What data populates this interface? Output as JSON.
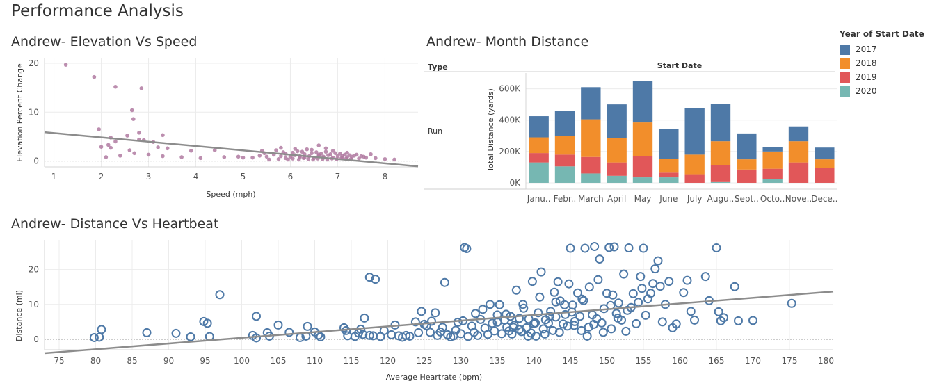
{
  "dashboard": {
    "title": "Performance Analysis"
  },
  "elevation_title": "Andrew- Elevation Vs Speed",
  "month_title": "Andrew- Month Distance",
  "heartbeat_title": "Andrew- Distance Vs Heartbeat",
  "legend": {
    "title": "Year of Start Date",
    "items": [
      {
        "label": "2017",
        "color": "#4e79a7"
      },
      {
        "label": "2018",
        "color": "#f28e2b"
      },
      {
        "label": "2019",
        "color": "#e15759"
      },
      {
        "label": "2020",
        "color": "#76b7b2"
      }
    ]
  },
  "month_headers": {
    "type_label": "Type",
    "date_label": "Start Date",
    "row_label": "Run"
  },
  "chart_data": [
    {
      "type": "scatter",
      "title": "Andrew- Elevation Vs Speed",
      "xlabel": "Speed (mph)",
      "ylabel": "Elevation Percent Change",
      "xlim": [
        0.8,
        8.7
      ],
      "ylim": [
        -1.2,
        21
      ],
      "xticks": [
        1,
        2,
        3,
        4,
        5,
        6,
        7,
        8
      ],
      "yticks": [
        0,
        10,
        20
      ],
      "point_color": "#b07aa1",
      "trend": {
        "x": [
          0.8,
          8.7
        ],
        "y": [
          5.9,
          -1.1
        ]
      },
      "points": [
        [
          1.25,
          19.7
        ],
        [
          1.85,
          17.2
        ],
        [
          2.3,
          15.2
        ],
        [
          2.85,
          14.9
        ],
        [
          2.65,
          10.4
        ],
        [
          2.68,
          8.6
        ],
        [
          1.95,
          6.5
        ],
        [
          2.8,
          5.8
        ],
        [
          2.55,
          5.2
        ],
        [
          3.3,
          5.3
        ],
        [
          2.2,
          4.8
        ],
        [
          2.15,
          3.3
        ],
        [
          2.3,
          4.0
        ],
        [
          2.8,
          4.4
        ],
        [
          2.9,
          4.3
        ],
        [
          3.1,
          3.9
        ],
        [
          2.0,
          2.9
        ],
        [
          2.2,
          2.7
        ],
        [
          2.6,
          2.2
        ],
        [
          3.2,
          2.8
        ],
        [
          3.4,
          2.6
        ],
        [
          3.9,
          2.1
        ],
        [
          4.4,
          2.2
        ],
        [
          5.4,
          2.1
        ],
        [
          6.6,
          3.2
        ],
        [
          2.1,
          0.8
        ],
        [
          2.4,
          1.1
        ],
        [
          2.7,
          1.6
        ],
        [
          3.0,
          1.3
        ],
        [
          3.3,
          1.0
        ],
        [
          3.7,
          0.8
        ],
        [
          4.1,
          0.6
        ],
        [
          4.6,
          0.8
        ],
        [
          4.9,
          0.9
        ],
        [
          5.0,
          0.7
        ],
        [
          5.2,
          0.7
        ],
        [
          5.35,
          1.1
        ],
        [
          5.5,
          0.9
        ],
        [
          5.65,
          1.3
        ],
        [
          5.8,
          1.0
        ],
        [
          5.9,
          1.5
        ],
        [
          6.0,
          0.9
        ],
        [
          6.1,
          1.2
        ],
        [
          6.2,
          0.8
        ],
        [
          6.3,
          1.4
        ],
        [
          6.4,
          1.0
        ],
        [
          6.5,
          0.6
        ],
        [
          6.6,
          1.1
        ],
        [
          6.7,
          0.9
        ],
        [
          6.8,
          1.2
        ],
        [
          6.9,
          0.7
        ],
        [
          7.0,
          1.0
        ],
        [
          7.1,
          1.1
        ],
        [
          7.2,
          0.8
        ],
        [
          7.3,
          0.9
        ],
        [
          7.4,
          1.3
        ],
        [
          7.6,
          0.7
        ],
        [
          7.8,
          0.6
        ],
        [
          8.0,
          0.4
        ],
        [
          8.2,
          0.3
        ],
        [
          5.45,
          1.6
        ],
        [
          5.7,
          2.2
        ],
        [
          5.85,
          1.8
        ],
        [
          6.05,
          1.7
        ],
        [
          6.15,
          2.0
        ],
        [
          6.25,
          1.9
        ],
        [
          6.35,
          2.4
        ],
        [
          6.45,
          1.6
        ],
        [
          6.55,
          1.8
        ],
        [
          6.65,
          1.5
        ],
        [
          6.75,
          1.9
        ],
        [
          6.85,
          1.4
        ],
        [
          6.95,
          1.6
        ],
        [
          7.05,
          1.5
        ],
        [
          7.15,
          1.3
        ],
        [
          7.25,
          1.2
        ],
        [
          7.35,
          1.1
        ],
        [
          7.5,
          1.0
        ],
        [
          7.7,
          1.4
        ],
        [
          5.55,
          0.3
        ],
        [
          5.75,
          0.4
        ],
        [
          5.95,
          0.3
        ],
        [
          6.05,
          0.5
        ],
        [
          6.18,
          0.3
        ],
        [
          6.28,
          0.6
        ],
        [
          6.38,
          0.4
        ],
        [
          6.48,
          0.3
        ],
        [
          6.58,
          0.5
        ],
        [
          6.68,
          0.4
        ],
        [
          6.78,
          0.3
        ],
        [
          6.88,
          0.5
        ],
        [
          6.98,
          0.4
        ],
        [
          7.08,
          0.6
        ],
        [
          7.18,
          0.5
        ],
        [
          7.28,
          0.4
        ],
        [
          7.45,
          0.5
        ],
        [
          5.9,
          0.6
        ],
        [
          6.3,
          0.7
        ],
        [
          6.7,
          0.7
        ],
        [
          7.1,
          0.7
        ],
        [
          7.55,
          0.9
        ],
        [
          6.2,
          1.0
        ],
        [
          6.6,
          1.3
        ],
        [
          6.45,
          2.3
        ],
        [
          6.75,
          2.6
        ],
        [
          6.1,
          2.5
        ],
        [
          5.8,
          2.7
        ],
        [
          6.9,
          2.1
        ],
        [
          7.2,
          1.7
        ]
      ]
    },
    {
      "type": "bar",
      "stacked": true,
      "title": "Andrew- Month Distance",
      "ylabel": "Total Distance (yards)",
      "ylim": [
        -40000,
        700000
      ],
      "yticks": [
        0,
        200000,
        400000,
        600000
      ],
      "ytick_labels": [
        "0K",
        "200K",
        "400K",
        "600K"
      ],
      "categories": [
        "Janu..",
        "Febr..",
        "March",
        "April",
        "May",
        "June",
        "July",
        "Augu..",
        "Sept..",
        "Octo..",
        "Nove..",
        "Dece.."
      ],
      "series": [
        {
          "name": "2020",
          "color": "#76b7b2",
          "values": [
            130000,
            105000,
            60000,
            45000,
            35000,
            35000,
            0,
            5000,
            0,
            25000,
            0,
            0
          ]
        },
        {
          "name": "2019",
          "color": "#e15759",
          "values": [
            60000,
            75000,
            105000,
            85000,
            135000,
            30000,
            55000,
            110000,
            85000,
            65000,
            130000,
            95000
          ]
        },
        {
          "name": "2018",
          "color": "#f28e2b",
          "values": [
            100000,
            120000,
            240000,
            155000,
            215000,
            90000,
            125000,
            150000,
            65000,
            110000,
            135000,
            55000
          ]
        },
        {
          "name": "2017",
          "color": "#4e79a7",
          "values": [
            135000,
            160000,
            205000,
            215000,
            265000,
            190000,
            295000,
            240000,
            165000,
            30000,
            95000,
            75000
          ]
        }
      ]
    },
    {
      "type": "scatter",
      "title": "Andrew- Distance Vs Heartbeat",
      "xlabel": "Average Heartrate (bpm)",
      "ylabel": "Distance (mi)",
      "xlim": [
        73,
        181
      ],
      "ylim": [
        -3,
        28.5
      ],
      "xticks": [
        75,
        80,
        85,
        90,
        95,
        100,
        105,
        110,
        115,
        120,
        125,
        130,
        135,
        140,
        145,
        150,
        155,
        160,
        165,
        170,
        175,
        180
      ],
      "yticks": [
        0,
        10,
        20
      ],
      "point_color": "#4e79a7",
      "trend": {
        "x": [
          73,
          181
        ],
        "y": [
          -4,
          13.7
        ]
      },
      "points": [
        [
          79.8,
          0.5
        ],
        [
          80.5,
          0.6
        ],
        [
          80.8,
          2.8
        ],
        [
          87.0,
          1.9
        ],
        [
          91.0,
          1.7
        ],
        [
          93.0,
          0.7
        ],
        [
          94.8,
          5.1
        ],
        [
          95.3,
          4.6
        ],
        [
          95.6,
          0.8
        ],
        [
          97.0,
          12.8
        ],
        [
          101.5,
          1.1
        ],
        [
          102.0,
          6.6
        ],
        [
          102.0,
          0.4
        ],
        [
          103.5,
          1.9
        ],
        [
          103.8,
          0.9
        ],
        [
          105.0,
          4.1
        ],
        [
          106.5,
          2.0
        ],
        [
          108.0,
          0.5
        ],
        [
          108.8,
          0.9
        ],
        [
          109.0,
          3.7
        ],
        [
          110.0,
          2.1
        ],
        [
          110.5,
          1.2
        ],
        [
          110.8,
          0.7
        ],
        [
          114.0,
          3.3
        ],
        [
          114.3,
          2.5
        ],
        [
          114.5,
          1.0
        ],
        [
          115.5,
          0.8
        ],
        [
          116.0,
          1.8
        ],
        [
          116.3,
          2.9
        ],
        [
          116.6,
          1.4
        ],
        [
          116.8,
          6.1
        ],
        [
          117.5,
          1.1
        ],
        [
          118.0,
          1.0
        ],
        [
          117.5,
          17.8
        ],
        [
          118.3,
          17.2
        ],
        [
          119.0,
          0.8
        ],
        [
          119.5,
          2.5
        ],
        [
          120.5,
          1.3
        ],
        [
          121.0,
          4.1
        ],
        [
          121.5,
          1.0
        ],
        [
          122.0,
          0.6
        ],
        [
          122.5,
          1.1
        ],
        [
          123.0,
          0.9
        ],
        [
          123.8,
          5.0
        ],
        [
          124.2,
          1.9
        ],
        [
          124.6,
          8.0
        ],
        [
          125.0,
          4.3
        ],
        [
          125.3,
          3.9
        ],
        [
          125.8,
          2.0
        ],
        [
          126.0,
          5.2
        ],
        [
          126.5,
          7.6
        ],
        [
          126.8,
          1.1
        ],
        [
          127.2,
          2.1
        ],
        [
          127.5,
          3.4
        ],
        [
          127.8,
          16.3
        ],
        [
          128.2,
          1.3
        ],
        [
          128.6,
          0.7
        ],
        [
          129.0,
          1.0
        ],
        [
          129.3,
          2.6
        ],
        [
          129.6,
          4.9
        ],
        [
          130.0,
          1.6
        ],
        [
          130.3,
          5.3
        ],
        [
          130.5,
          26.3
        ],
        [
          130.8,
          26.0
        ],
        [
          131.0,
          0.8
        ],
        [
          131.5,
          3.8
        ],
        [
          131.8,
          2.0
        ],
        [
          132.0,
          7.4
        ],
        [
          132.3,
          1.1
        ],
        [
          132.7,
          5.7
        ],
        [
          133.0,
          8.6
        ],
        [
          133.3,
          3.2
        ],
        [
          133.7,
          1.4
        ],
        [
          134.0,
          10.0
        ],
        [
          134.3,
          4.6
        ],
        [
          134.6,
          2.4
        ],
        [
          135.0,
          7.0
        ],
        [
          135.3,
          9.9
        ],
        [
          135.6,
          1.6
        ],
        [
          136.0,
          5.5
        ],
        [
          136.3,
          3.5
        ],
        [
          136.6,
          2.4
        ],
        [
          137.0,
          1.5
        ],
        [
          137.3,
          4.0
        ],
        [
          137.6,
          14.1
        ],
        [
          138.0,
          6.0
        ],
        [
          138.3,
          2.2
        ],
        [
          138.6,
          8.9
        ],
        [
          139.0,
          3.3
        ],
        [
          139.3,
          5.8
        ],
        [
          139.6,
          1.8
        ],
        [
          140.0,
          4.5
        ],
        [
          140.3,
          0.9
        ],
        [
          140.6,
          7.6
        ],
        [
          141.0,
          19.3
        ],
        [
          141.3,
          3.0
        ],
        [
          141.6,
          5.6
        ],
        [
          142.0,
          4.6
        ],
        [
          142.3,
          8.0
        ],
        [
          142.6,
          2.5
        ],
        [
          143.0,
          6.4
        ],
        [
          143.3,
          16.5
        ],
        [
          143.6,
          11.0
        ],
        [
          144.0,
          4.4
        ],
        [
          144.3,
          7.1
        ],
        [
          144.6,
          3.8
        ],
        [
          145.0,
          26.1
        ],
        [
          145.3,
          9.8
        ],
        [
          145.6,
          5.1
        ],
        [
          146.0,
          13.3
        ],
        [
          146.3,
          6.6
        ],
        [
          146.6,
          11.5
        ],
        [
          147.0,
          26.1
        ],
        [
          147.3,
          0.9
        ],
        [
          147.6,
          15.0
        ],
        [
          148.0,
          7.0
        ],
        [
          148.3,
          26.6
        ],
        [
          148.6,
          5.9
        ],
        [
          149.0,
          23.0
        ],
        [
          149.3,
          4.7
        ],
        [
          149.6,
          8.8
        ],
        [
          150.0,
          13.2
        ],
        [
          150.3,
          26.3
        ],
        [
          150.6,
          3.0
        ],
        [
          151.0,
          26.5
        ],
        [
          151.3,
          7.4
        ],
        [
          151.6,
          10.4
        ],
        [
          152.0,
          5.5
        ],
        [
          152.3,
          18.7
        ],
        [
          152.6,
          2.3
        ],
        [
          153.0,
          26.2
        ],
        [
          153.3,
          9.1
        ],
        [
          153.6,
          13.1
        ],
        [
          154.0,
          4.5
        ],
        [
          154.3,
          10.6
        ],
        [
          154.6,
          18.0
        ],
        [
          155.0,
          26.1
        ],
        [
          155.3,
          6.9
        ],
        [
          155.6,
          11.6
        ],
        [
          156.0,
          13.2
        ],
        [
          156.3,
          16.0
        ],
        [
          156.6,
          20.2
        ],
        [
          157.0,
          22.5
        ],
        [
          157.3,
          15.2
        ],
        [
          157.6,
          5.0
        ],
        [
          158.0,
          10.0
        ],
        [
          158.5,
          16.6
        ],
        [
          159.0,
          3.3
        ],
        [
          159.5,
          4.4
        ],
        [
          160.5,
          13.4
        ],
        [
          161.0,
          16.9
        ],
        [
          161.5,
          8.0
        ],
        [
          162.0,
          5.5
        ],
        [
          163.5,
          18.0
        ],
        [
          164.0,
          11.1
        ],
        [
          165.0,
          26.2
        ],
        [
          165.3,
          7.9
        ],
        [
          165.6,
          5.3
        ],
        [
          166.0,
          6.2
        ],
        [
          167.5,
          15.1
        ],
        [
          168.0,
          5.3
        ],
        [
          170.0,
          5.4
        ],
        [
          175.3,
          10.3
        ],
        [
          138.5,
          10.0
        ],
        [
          139.8,
          16.6
        ],
        [
          140.8,
          12.1
        ],
        [
          142.8,
          13.5
        ],
        [
          144.8,
          15.9
        ],
        [
          146.8,
          11.1
        ],
        [
          148.8,
          17.1
        ],
        [
          150.8,
          12.7
        ],
        [
          152.8,
          8.3
        ],
        [
          154.8,
          14.6
        ],
        [
          145.5,
          4.0
        ],
        [
          146.5,
          2.5
        ],
        [
          147.5,
          3.5
        ],
        [
          143.5,
          2.0
        ],
        [
          141.5,
          1.5
        ],
        [
          139.2,
          0.9
        ],
        [
          137.2,
          3.4
        ],
        [
          136.2,
          7.2
        ],
        [
          135.0,
          4.9
        ],
        [
          150.5,
          9.7
        ],
        [
          151.5,
          6.1
        ],
        [
          149.5,
          2.0
        ],
        [
          148.2,
          4.3
        ],
        [
          145.2,
          7.8
        ],
        [
          144.2,
          9.9
        ],
        [
          143.0,
          10.7
        ],
        [
          142.2,
          6.7
        ],
        [
          140.2,
          4.7
        ],
        [
          138.0,
          2.8
        ],
        [
          136.8,
          6.6
        ]
      ]
    }
  ]
}
